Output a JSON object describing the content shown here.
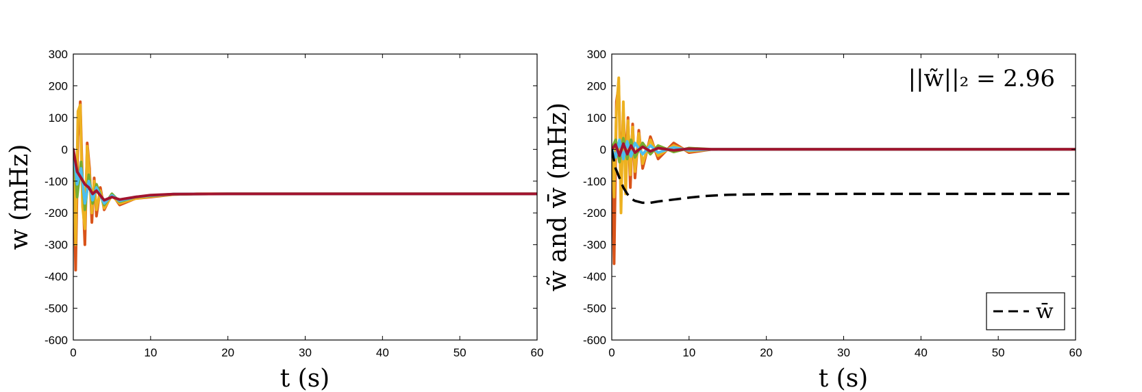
{
  "chart_data": [
    {
      "type": "line",
      "xlabel": "t (s)",
      "ylabel": "w (mHz)",
      "xlim": [
        0,
        60
      ],
      "ylim": [
        -600,
        300
      ],
      "xticks": [
        "0",
        "10",
        "20",
        "30",
        "40",
        "50",
        "60"
      ],
      "yticks": [
        "300",
        "200",
        "100",
        "0",
        "-100",
        "-200",
        "-300",
        "-400",
        "-500",
        "-600"
      ],
      "grid": false,
      "legend": "none",
      "series_colors": [
        "#d95319",
        "#edb120",
        "#77ac30",
        "#4dbeee",
        "#a2142f"
      ],
      "series": [
        {
          "x": [
            0,
            0.3,
            0.6,
            0.9,
            1.2,
            1.5,
            1.8,
            2.1,
            2.4,
            2.7,
            3.0,
            3.5,
            4,
            5,
            6,
            8,
            10,
            13,
            16,
            20,
            30,
            60
          ],
          "values": [
            0,
            -380,
            40,
            150,
            -120,
            -300,
            20,
            -60,
            -230,
            -90,
            -210,
            -120,
            -190,
            -140,
            -175,
            -155,
            -150,
            -142,
            -140,
            -140,
            -140,
            -140
          ]
        },
        {
          "x": [
            0,
            0.3,
            0.6,
            0.9,
            1.2,
            1.5,
            1.8,
            2.1,
            2.4,
            2.7,
            3.0,
            3.5,
            4,
            5,
            6,
            8,
            10,
            13,
            16,
            20,
            30,
            60
          ],
          "values": [
            0,
            -300,
            120,
            140,
            -180,
            -250,
            10,
            -80,
            -200,
            -100,
            -190,
            -130,
            -185,
            -145,
            -170,
            -155,
            -148,
            -142,
            -140,
            -140,
            -140,
            -140
          ]
        },
        {
          "x": [
            0,
            0.5,
            1.0,
            1.5,
            2.0,
            2.5,
            3.0,
            4,
            5,
            6,
            8,
            10,
            13,
            20,
            60
          ],
          "values": [
            0,
            -150,
            -40,
            -190,
            -80,
            -170,
            -110,
            -175,
            -140,
            -165,
            -150,
            -146,
            -141,
            -140,
            -140
          ]
        },
        {
          "x": [
            0,
            0.5,
            1.0,
            1.5,
            2.0,
            2.5,
            3.0,
            4,
            5,
            6,
            8,
            10,
            13,
            20,
            60
          ],
          "values": [
            0,
            -110,
            -60,
            -170,
            -100,
            -160,
            -120,
            -170,
            -145,
            -162,
            -150,
            -145,
            -141,
            -140,
            -140
          ]
        },
        {
          "x": [
            0,
            0.5,
            1.0,
            1.5,
            2.0,
            2.5,
            3.0,
            4,
            5,
            6,
            8,
            10,
            13,
            20,
            60
          ],
          "values": [
            0,
            -70,
            -90,
            -110,
            -120,
            -140,
            -130,
            -160,
            -150,
            -158,
            -150,
            -144,
            -141,
            -140,
            -140
          ]
        }
      ]
    },
    {
      "type": "line",
      "xlabel": "t (s)",
      "ylabel": "w̃ and w̄ (mHz)",
      "xlim": [
        0,
        60
      ],
      "ylim": [
        -600,
        300
      ],
      "xticks": [
        "0",
        "10",
        "20",
        "30",
        "40",
        "50",
        "60"
      ],
      "yticks": [
        "300",
        "200",
        "100",
        "0",
        "-100",
        "-200",
        "-300",
        "-400",
        "-500",
        "-600"
      ],
      "grid": false,
      "legend": "bottom-right",
      "annotation": "||w̃||₂ = 2.96",
      "series_colors": [
        "#d95319",
        "#edb120",
        "#77ac30",
        "#4dbeee",
        "#a2142f"
      ],
      "series": [
        {
          "x": [
            0,
            0.3,
            0.6,
            0.9,
            1.2,
            1.5,
            1.8,
            2.1,
            2.4,
            2.7,
            3.0,
            3.5,
            4,
            5,
            6,
            8,
            10,
            13,
            60
          ],
          "values": [
            0,
            -360,
            150,
            200,
            -100,
            120,
            -50,
            100,
            -120,
            80,
            -90,
            60,
            -60,
            40,
            -30,
            20,
            -10,
            0,
            0
          ]
        },
        {
          "x": [
            0,
            0.3,
            0.6,
            0.9,
            1.2,
            1.5,
            1.8,
            2.1,
            2.4,
            2.7,
            3.0,
            3.5,
            4,
            5,
            6,
            8,
            10,
            13,
            60
          ],
          "values": [
            0,
            -150,
            120,
            225,
            -200,
            150,
            -140,
            90,
            -80,
            70,
            -70,
            50,
            -45,
            30,
            -20,
            12,
            -6,
            0,
            0
          ]
        },
        {
          "x": [
            0,
            0.5,
            1.0,
            1.5,
            2.0,
            2.5,
            3.0,
            4,
            5,
            6,
            8,
            10,
            13,
            60
          ],
          "values": [
            0,
            30,
            -40,
            35,
            -30,
            30,
            -25,
            20,
            -15,
            12,
            -8,
            4,
            0,
            0
          ]
        },
        {
          "x": [
            0,
            0.5,
            1.0,
            1.5,
            2.0,
            2.5,
            3.0,
            4,
            5,
            6,
            8,
            10,
            13,
            60
          ],
          "values": [
            0,
            -25,
            30,
            -30,
            25,
            -22,
            20,
            -15,
            12,
            -10,
            6,
            -3,
            0,
            0
          ]
        },
        {
          "x": [
            0,
            0.5,
            1.0,
            1.5,
            2.0,
            2.5,
            3.0,
            4,
            5,
            6,
            8,
            10,
            13,
            60
          ],
          "values": [
            0,
            15,
            -20,
            18,
            -15,
            12,
            -10,
            8,
            -6,
            4,
            -3,
            2,
            0,
            0
          ]
        },
        {
          "name": "w̄",
          "style": "dashed",
          "color": "#000000",
          "x": [
            0,
            0.5,
            1,
            1.5,
            2,
            2.5,
            3,
            4,
            5,
            6,
            8,
            10,
            12,
            15,
            20,
            30,
            40,
            60
          ],
          "values": [
            0,
            -60,
            -90,
            -120,
            -140,
            -155,
            -162,
            -168,
            -168,
            -164,
            -158,
            -152,
            -147,
            -143,
            -141,
            -140,
            -140,
            -140
          ]
        }
      ]
    }
  ]
}
